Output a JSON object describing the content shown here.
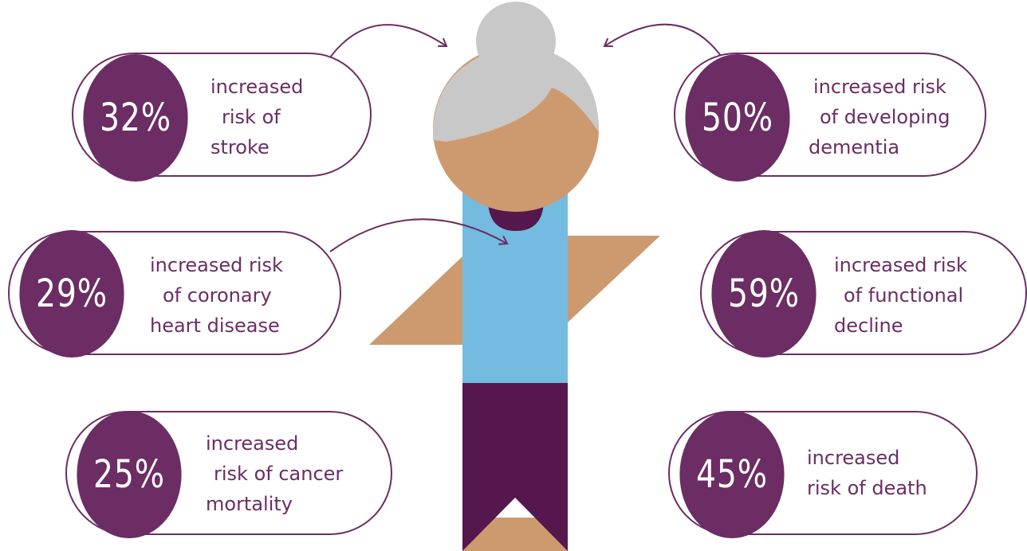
{
  "colors": {
    "purple": "#6b2d63",
    "hair": "#c8c8c8",
    "skin": "#cd9a6f",
    "shirt": "#73bbe0",
    "pants": "#55174d",
    "white": "#ffffff"
  },
  "stats": {
    "stroke": {
      "value": "32%",
      "lines": [
        "increased",
        "risk of",
        "stroke"
      ]
    },
    "coronary": {
      "value": "29%",
      "lines": [
        "increased risk",
        "of coronary",
        "heart disease"
      ]
    },
    "cancer": {
      "value": "25%",
      "lines": [
        "increased",
        "risk of cancer",
        "mortality"
      ]
    },
    "dementia": {
      "value": "50%",
      "lines": [
        "increased risk",
        "of developing",
        "dementia"
      ]
    },
    "functional": {
      "value": "59%",
      "lines": [
        "increased risk",
        "of functional",
        "decline"
      ]
    },
    "death": {
      "value": "45%",
      "lines": [
        "increased",
        "risk of death"
      ]
    }
  }
}
